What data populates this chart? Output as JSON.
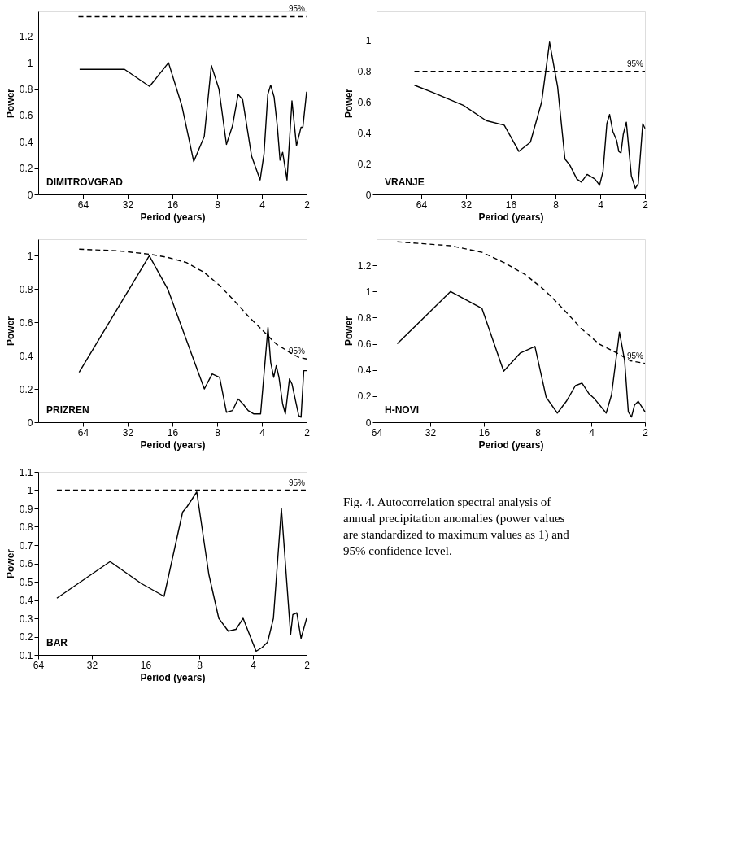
{
  "chart_data": [
    {
      "type": "line",
      "xlabel": "Period (years)",
      "ylabel": "Power",
      "log": "x",
      "xlim": [
        128,
        2
      ],
      "xticks": [
        64,
        32,
        16,
        8,
        4,
        2
      ],
      "ylim": [
        0,
        1.39
      ],
      "yticks": [
        0,
        0.2,
        0.4,
        0.6,
        0.8,
        1,
        1.2
      ],
      "annotations": [
        "DIMITROVGRAD"
      ],
      "series": [
        {
          "color": "#000000",
          "x": [
            67.4,
            33.6,
            22.8,
            17.0,
            13.8,
            11.5,
            9.77,
            8.75,
            7.78,
            6.93,
            6.31,
            5.78,
            5.39,
            4.69,
            4.11,
            3.87,
            3.65,
            3.49,
            3.31,
            3.15,
            3.02,
            2.9,
            2.71,
            2.51,
            2.34,
            2.18,
            2.12,
            2.0
          ],
          "values": [
            0.95,
            0.95,
            0.82,
            1.0,
            0.67,
            0.25,
            0.44,
            0.98,
            0.8,
            0.38,
            0.52,
            0.76,
            0.72,
            0.29,
            0.11,
            0.31,
            0.76,
            0.83,
            0.74,
            0.52,
            0.26,
            0.32,
            0.11,
            0.71,
            0.37,
            0.51,
            0.51,
            0.78
          ]
        },
        {
          "name": "95%",
          "type": "line",
          "line_style": "dashed",
          "color": "#000000",
          "x": [
            68.6,
            2
          ],
          "values": [
            1.35,
            1.35
          ]
        }
      ]
    },
    {
      "type": "line",
      "xlabel": "Period (years)",
      "ylabel": "Power",
      "log": "x",
      "xlim": [
        128,
        2
      ],
      "xticks": [
        64,
        32,
        16,
        8,
        4,
        2
      ],
      "ylim": [
        0,
        1.19
      ],
      "yticks": [
        0,
        0.2,
        0.4,
        0.6,
        0.8,
        1
      ],
      "annotations": [
        "VRANJE"
      ],
      "series": [
        {
          "color": "#000000",
          "x": [
            71.2,
            52.8,
            33.4,
            23.4,
            17.7,
            14.1,
            11.8,
            9.92,
            8.77,
            7.74,
            6.91,
            6.4,
            5.74,
            5.36,
            4.9,
            4.34,
            4.04,
            3.83,
            3.61,
            3.46,
            3.29,
            3.1,
            3.0,
            2.9,
            2.8,
            2.67,
            2.47,
            2.32,
            2.22,
            2.07,
            2.0
          ],
          "values": [
            0.71,
            0.66,
            0.58,
            0.48,
            0.45,
            0.28,
            0.34,
            0.6,
            0.99,
            0.7,
            0.23,
            0.19,
            0.1,
            0.08,
            0.13,
            0.1,
            0.06,
            0.15,
            0.46,
            0.52,
            0.41,
            0.35,
            0.28,
            0.27,
            0.39,
            0.47,
            0.12,
            0.04,
            0.07,
            0.46,
            0.43
          ]
        },
        {
          "name": "95%",
          "type": "line",
          "line_style": "dashed",
          "color": "#000000",
          "x": [
            71.2,
            2
          ],
          "values": [
            0.8,
            0.8
          ]
        }
      ]
    },
    {
      "type": "line",
      "xlabel": "Period (years)",
      "ylabel": "Power",
      "log": "x",
      "xlim": [
        128,
        2
      ],
      "xticks": [
        64,
        32,
        16,
        8,
        4,
        2
      ],
      "ylim": [
        0,
        1.1
      ],
      "yticks": [
        0,
        0.2,
        0.4,
        0.6,
        0.8,
        1
      ],
      "annotations": [
        "PRIZREN"
      ],
      "series": [
        {
          "color": "#000000",
          "x": [
            67.9,
            22.9,
            17.2,
            9.76,
            8.64,
            7.7,
            6.93,
            6.31,
            5.78,
            5.36,
            4.95,
            4.53,
            4.08,
            3.64,
            3.49,
            3.33,
            3.2,
            3.07,
            2.9,
            2.78,
            2.61,
            2.51,
            2.26,
            2.18,
            2.09,
            2.0
          ],
          "values": [
            0.3,
            1.0,
            0.8,
            0.2,
            0.29,
            0.27,
            0.06,
            0.07,
            0.14,
            0.11,
            0.07,
            0.05,
            0.05,
            0.57,
            0.36,
            0.27,
            0.34,
            0.27,
            0.11,
            0.05,
            0.26,
            0.23,
            0.04,
            0.03,
            0.31,
            0.31
          ]
        },
        {
          "name": "95%",
          "type": "line",
          "line_style": "dashed",
          "color": "#000000",
          "x": [
            67.9,
            36.7,
            22.9,
            17.1,
            12.9,
            9.76,
            7.66,
            5.99,
            4.86,
            3.94,
            3.2,
            2.6,
            2.26,
            2.0
          ],
          "values": [
            1.04,
            1.03,
            1.01,
            0.99,
            0.96,
            0.9,
            0.82,
            0.72,
            0.63,
            0.55,
            0.47,
            0.42,
            0.39,
            0.38
          ]
        }
      ]
    },
    {
      "type": "line",
      "xlabel": "Period (years)",
      "ylabel": "Power",
      "log": "x",
      "xlim": [
        64,
        2
      ],
      "xticks": [
        64,
        32,
        16,
        8,
        4,
        2
      ],
      "ylim": [
        0,
        1.4
      ],
      "yticks": [
        0,
        0.2,
        0.4,
        0.6,
        0.8,
        1,
        1.2
      ],
      "annotations": [
        "H-NOVI"
      ],
      "series": [
        {
          "color": "#000000",
          "x": [
            49.0,
            24.6,
            16.4,
            12.4,
            9.99,
            8.28,
            7.16,
            6.2,
            5.52,
            4.91,
            4.51,
            4.13,
            3.84,
            3.3,
            3.08,
            2.78,
            2.6,
            2.48,
            2.38,
            2.29,
            2.18,
            2.0
          ],
          "values": [
            0.6,
            1.0,
            0.87,
            0.39,
            0.53,
            0.58,
            0.19,
            0.07,
            0.16,
            0.28,
            0.3,
            0.22,
            0.18,
            0.07,
            0.21,
            0.69,
            0.47,
            0.08,
            0.04,
            0.13,
            0.16,
            0.08
          ]
        },
        {
          "name": "95%",
          "type": "line",
          "line_style": "dashed",
          "color": "#000000",
          "x": [
            49.0,
            24.6,
            16.4,
            12.3,
            9.4,
            7.3,
            5.78,
            4.58,
            3.63,
            2.79,
            2.42,
            2.0
          ],
          "values": [
            1.38,
            1.35,
            1.3,
            1.22,
            1.13,
            1.01,
            0.87,
            0.72,
            0.6,
            0.52,
            0.47,
            0.45
          ]
        }
      ]
    },
    {
      "type": "line",
      "xlabel": "Period (years)",
      "ylabel": "Power",
      "log": "x",
      "xlim": [
        64,
        2
      ],
      "xticks": [
        64,
        32,
        16,
        8,
        4,
        2
      ],
      "ylim": [
        0.1,
        1.1
      ],
      "yticks": [
        0.1,
        0.2,
        0.3,
        0.4,
        0.5,
        0.6,
        0.7,
        0.8,
        0.9,
        1,
        1.1
      ],
      "annotations": [
        "BAR"
      ],
      "series": [
        {
          "color": "#000000",
          "x": [
            50.3,
            25.3,
            16.9,
            12.6,
            9.92,
            9.36,
            8.26,
            7.07,
            6.22,
            5.5,
            4.98,
            4.54,
            4.1,
            3.84,
            3.56,
            3.31,
            3.07,
            2.77,
            2.46,
            2.39,
            2.27,
            2.15,
            2.0
          ],
          "values": [
            0.41,
            0.61,
            0.49,
            0.42,
            0.88,
            0.91,
            0.99,
            0.54,
            0.3,
            0.23,
            0.24,
            0.3,
            0.19,
            0.12,
            0.14,
            0.17,
            0.3,
            0.9,
            0.21,
            0.32,
            0.33,
            0.19,
            0.3
          ]
        },
        {
          "name": "95%",
          "type": "line",
          "line_style": "dashed",
          "color": "#000000",
          "x": [
            50.3,
            2
          ],
          "values": [
            1.0,
            1.0
          ]
        }
      ]
    },
    {
      "type": "other",
      "annotations": [
        "Fig. 4. Autocorrelation spectral analysis of annual precipitation anomalies (power values are standardized to maximum values as 1) and 95% confidence level."
      ]
    }
  ]
}
